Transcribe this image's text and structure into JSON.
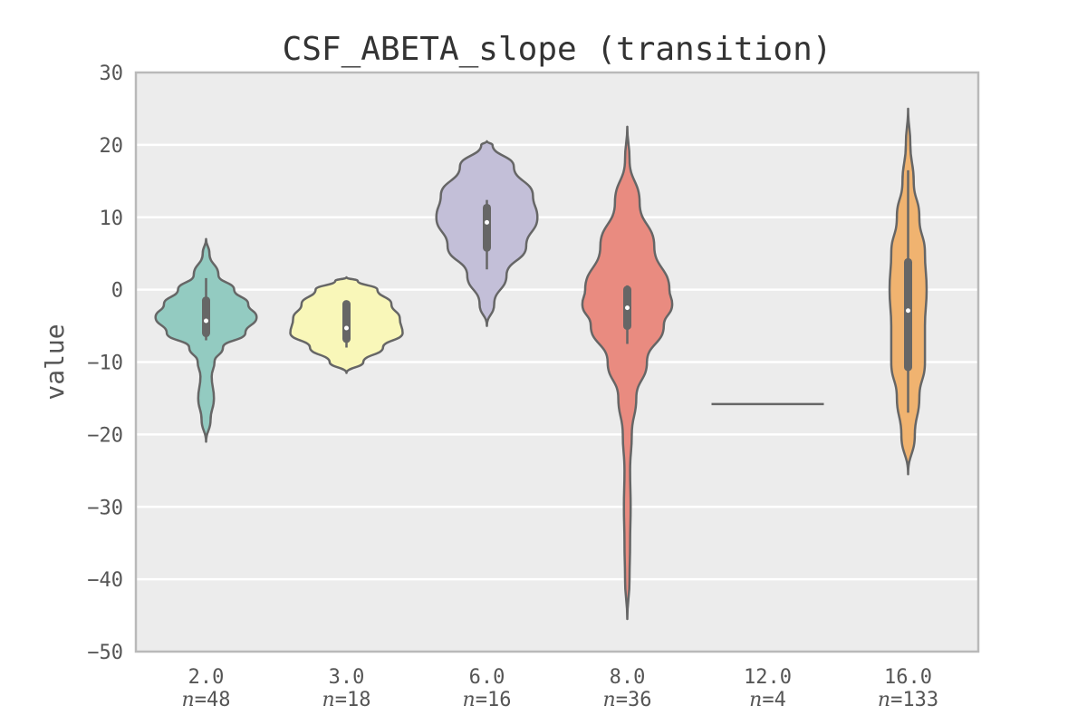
{
  "chart_data": {
    "type": "violin",
    "title": "CSF_ABETA_slope (transition)",
    "xlabel": "",
    "ylabel": "value",
    "ylim": [
      -50,
      30
    ],
    "yticks": [
      30,
      20,
      10,
      0,
      -10,
      -20,
      -30,
      -40,
      -50
    ],
    "ytick_labels": [
      "30",
      "20",
      "10",
      "0",
      "−10",
      "−20",
      "−30",
      "−40",
      "−50"
    ],
    "grid": true,
    "categories": [
      "2.0",
      "3.0",
      "6.0",
      "8.0",
      "12.0",
      "16.0"
    ],
    "n_labels": [
      "n=48",
      "n=18",
      "n=16",
      "n=36",
      "n=4",
      "n=133"
    ],
    "groups": [
      {
        "category": "2.0",
        "n": 48,
        "color": "#93cbc1",
        "min": -21,
        "max": 7,
        "median": -4.3,
        "q1": -6,
        "q3": -1.5,
        "whisker_low": -7,
        "whisker_high": 1.6,
        "density": [
          [
            7,
            0.0
          ],
          [
            5,
            0.06
          ],
          [
            2,
            0.22
          ],
          [
            0,
            0.5
          ],
          [
            -2,
            0.75
          ],
          [
            -3.8,
            0.9
          ],
          [
            -6,
            0.7
          ],
          [
            -8,
            0.3
          ],
          [
            -10,
            0.15
          ],
          [
            -12,
            0.1
          ],
          [
            -15,
            0.14
          ],
          [
            -18,
            0.08
          ],
          [
            -21,
            0.0
          ]
        ]
      },
      {
        "category": "3.0",
        "n": 18,
        "color": "#f9f7b9",
        "min": -11.5,
        "max": 1.7,
        "median": -5.3,
        "q1": -6.8,
        "q3": -2,
        "whisker_low": -8,
        "whisker_high": -2,
        "density": [
          [
            1.7,
            0.0
          ],
          [
            1.2,
            0.2
          ],
          [
            0,
            0.55
          ],
          [
            -2,
            0.8
          ],
          [
            -4,
            0.95
          ],
          [
            -6,
            1.0
          ],
          [
            -8,
            0.65
          ],
          [
            -10,
            0.3
          ],
          [
            -11.5,
            0.0
          ]
        ]
      },
      {
        "category": "6.0",
        "n": 16,
        "color": "#c3bfd8",
        "min": -5,
        "max": 20.5,
        "median": 9.3,
        "q1": 5.8,
        "q3": 11.3,
        "whisker_low": 2.8,
        "whisker_high": 12.4,
        "density": [
          [
            20.5,
            0.0
          ],
          [
            20,
            0.1
          ],
          [
            17,
            0.48
          ],
          [
            13,
            0.82
          ],
          [
            10,
            0.9
          ],
          [
            6,
            0.7
          ],
          [
            2,
            0.35
          ],
          [
            -2,
            0.13
          ],
          [
            -5,
            0.0
          ]
        ]
      },
      {
        "category": "8.0",
        "n": 36,
        "color": "#e98b80",
        "min": -45.5,
        "max": 22.5,
        "median": -2.5,
        "q1": -5,
        "q3": 0,
        "whisker_low": -7.5,
        "whisker_high": 0.6,
        "density": [
          [
            22.5,
            0.0
          ],
          [
            18,
            0.04
          ],
          [
            12,
            0.22
          ],
          [
            6,
            0.48
          ],
          [
            0,
            0.75
          ],
          [
            -2,
            0.8
          ],
          [
            -5,
            0.65
          ],
          [
            -10,
            0.35
          ],
          [
            -15,
            0.16
          ],
          [
            -20,
            0.08
          ],
          [
            -25,
            0.05
          ],
          [
            -30,
            0.06
          ],
          [
            -35,
            0.05
          ],
          [
            -40,
            0.04
          ],
          [
            -45.5,
            0.0
          ]
        ]
      },
      {
        "category": "12.0",
        "n": 4,
        "color": "#e98b80",
        "value": -15.8,
        "flat": true
      },
      {
        "category": "16.0",
        "n": 133,
        "color": "#f0b370",
        "min": -25.5,
        "max": 25,
        "median": -2.9,
        "q1": -10.7,
        "q3": 3.8,
        "whisker_low": -17,
        "whisker_high": 16.5,
        "density": [
          [
            25,
            0.0
          ],
          [
            20,
            0.04
          ],
          [
            15,
            0.1
          ],
          [
            10,
            0.2
          ],
          [
            5,
            0.3
          ],
          [
            0,
            0.33
          ],
          [
            -5,
            0.3
          ],
          [
            -10,
            0.3
          ],
          [
            -15,
            0.2
          ],
          [
            -20,
            0.12
          ],
          [
            -25.5,
            0.0
          ]
        ]
      }
    ]
  }
}
